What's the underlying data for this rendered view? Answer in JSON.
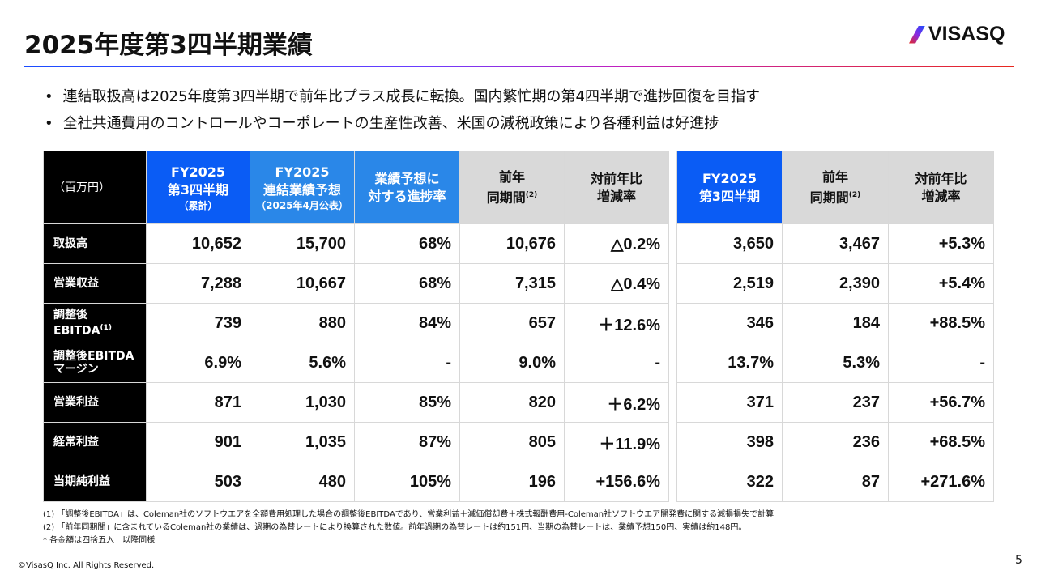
{
  "title": "2025年度第3四半期業績",
  "logo": "VISASQ",
  "bullets": [
    "連結取扱高は2025年度第3四半期で前年比プラス成長に転換。国内繁忙期の第4四半期で進捗回復を目指す",
    "全社共通費用のコントロールやコーポレートの生産性改善、米国の減税政策により各種利益は好進捗"
  ],
  "left_table": {
    "unit": "（百万円）",
    "headers": [
      {
        "l1": "FY2025",
        "l2": "第3四半期",
        "l3": "（累計）"
      },
      {
        "l1": "FY2025",
        "l2": "連結業績予想",
        "l3": "（2025年4月公表）"
      },
      {
        "l1": "業績予想に",
        "l2": "対する進捗率"
      },
      {
        "l1": "前年",
        "l2": "同期間",
        "sup": "(2)"
      },
      {
        "l1": "対前年比",
        "l2": "増減率"
      }
    ],
    "rows": [
      {
        "label": "取扱高",
        "v": [
          "10,652",
          "15,700",
          "68%",
          "10,676",
          "△0.2%"
        ]
      },
      {
        "label": "営業収益",
        "v": [
          "7,288",
          "10,667",
          "68%",
          "7,315",
          "△0.4%"
        ]
      },
      {
        "label": "調整後",
        "label2": "EBITDA",
        "sup": "(1)",
        "v": [
          "739",
          "880",
          "84%",
          "657",
          "＋12.6%"
        ]
      },
      {
        "label": "調整後EBITDA",
        "label2": "マージン",
        "v": [
          "6.9%",
          "5.6%",
          "-",
          "9.0%",
          "-"
        ]
      },
      {
        "label": "営業利益",
        "v": [
          "871",
          "1,030",
          "85%",
          "820",
          "＋6.2%"
        ]
      },
      {
        "label": "経常利益",
        "v": [
          "901",
          "1,035",
          "87%",
          "805",
          "＋11.9%"
        ]
      },
      {
        "label": "当期純利益",
        "v": [
          "503",
          "480",
          "105%",
          "196",
          "+156.6%"
        ]
      }
    ]
  },
  "right_table": {
    "headers": [
      {
        "l1": "FY2025",
        "l2": "第3四半期"
      },
      {
        "l1": "前年",
        "l2": "同期間",
        "sup": "(2)"
      },
      {
        "l1": "対前年比",
        "l2": "増減率"
      }
    ],
    "rows": [
      [
        "3,650",
        "3,467",
        "+5.3%"
      ],
      [
        "2,519",
        "2,390",
        "+5.4%"
      ],
      [
        "346",
        "184",
        "+88.5%"
      ],
      [
        "13.7%",
        "5.3%",
        "-"
      ],
      [
        "371",
        "237",
        "+56.7%"
      ],
      [
        "398",
        "236",
        "+68.5%"
      ],
      [
        "322",
        "87",
        "+271.6%"
      ]
    ]
  },
  "footnotes": [
    "(1) 「調整後EBITDA」は、Coleman社のソフトウエアを全額費用処理した場合の調整後EBITDAであり、営業利益＋減価償却費＋株式報酬費用-Coleman社ソフトウエア開発費に関する減損損失で計算",
    "(2) 「前年同期間」に含まれているColeman社の業績は、過期の為替レートにより換算された数値。前年過期の為替レートは約151円、当期の為替レートは、業績予想150円、実績は約148円。",
    "* 各金額は四捨五入　以降同様"
  ],
  "copyright": "©VisasQ Inc. All Rights Reserved.",
  "page": "5"
}
